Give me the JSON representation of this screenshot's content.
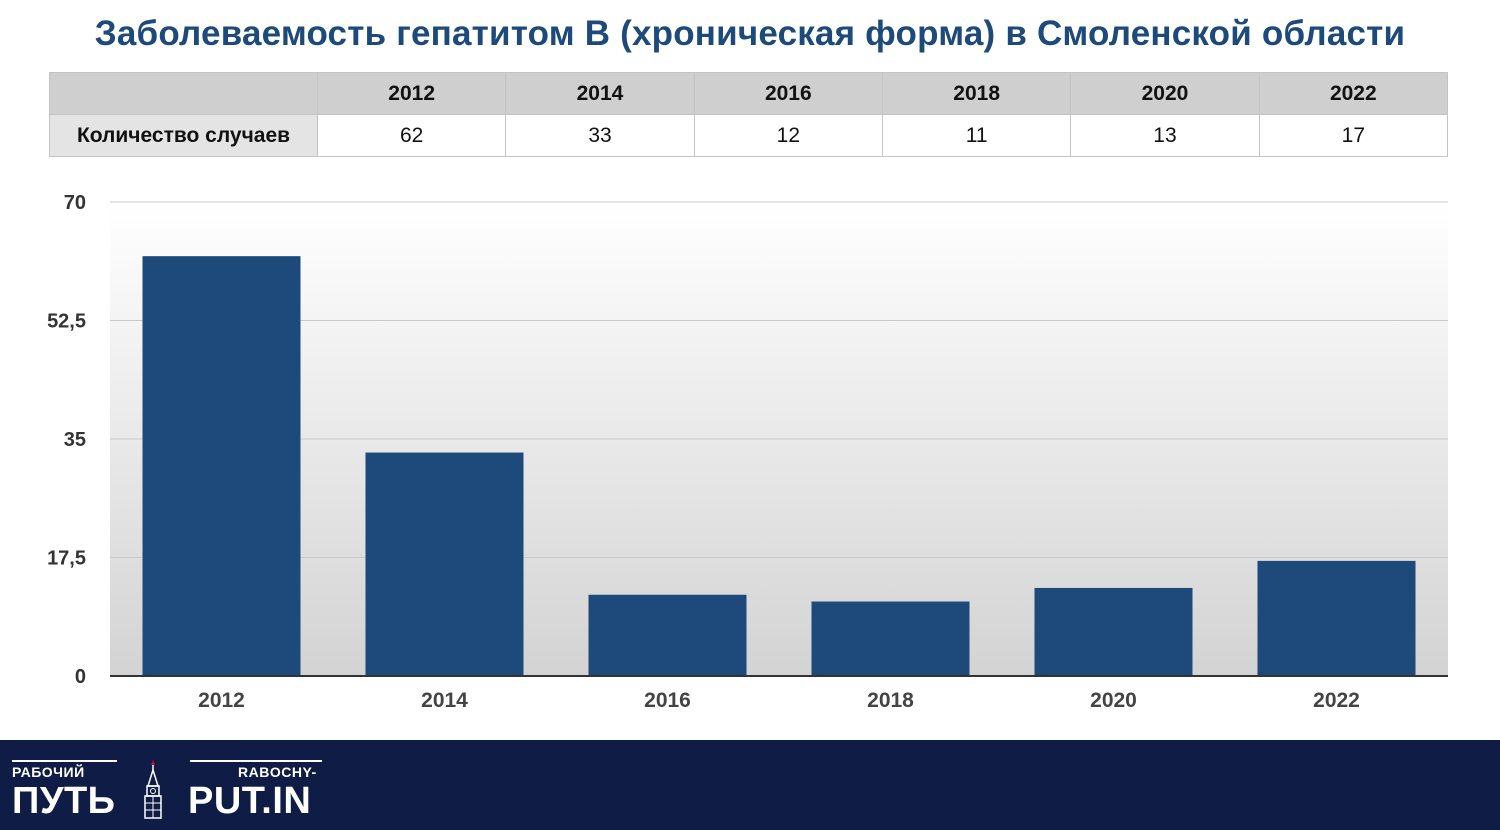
{
  "title": "Заболеваемость гепатитом В (хроническая форма) в Смоленской области",
  "table": {
    "row_label": "Количество случаев",
    "headers": [
      "2012",
      "2014",
      "2016",
      "2018",
      "2020",
      "2022"
    ],
    "values": [
      "62",
      "33",
      "12",
      "11",
      "13",
      "17"
    ]
  },
  "chart_data": {
    "type": "bar",
    "categories": [
      "2012",
      "2014",
      "2016",
      "2018",
      "2020",
      "2022"
    ],
    "values": [
      62,
      33,
      12,
      11,
      13,
      17
    ],
    "ylim": [
      0,
      70
    ],
    "yticks": [
      "0",
      "17,5",
      "35",
      "52,5",
      "70"
    ],
    "ytick_values": [
      0,
      17.5,
      35,
      52.5,
      70
    ],
    "grid": true,
    "bar_color": "#1d4a7a"
  },
  "footer": {
    "logo_left_small": "РАБОЧИЙ",
    "logo_left_big": "ПУТЬ",
    "logo_right_small": "RABOCHY-",
    "logo_right_big": "PUT.IN",
    "background": "#0f1c45"
  }
}
